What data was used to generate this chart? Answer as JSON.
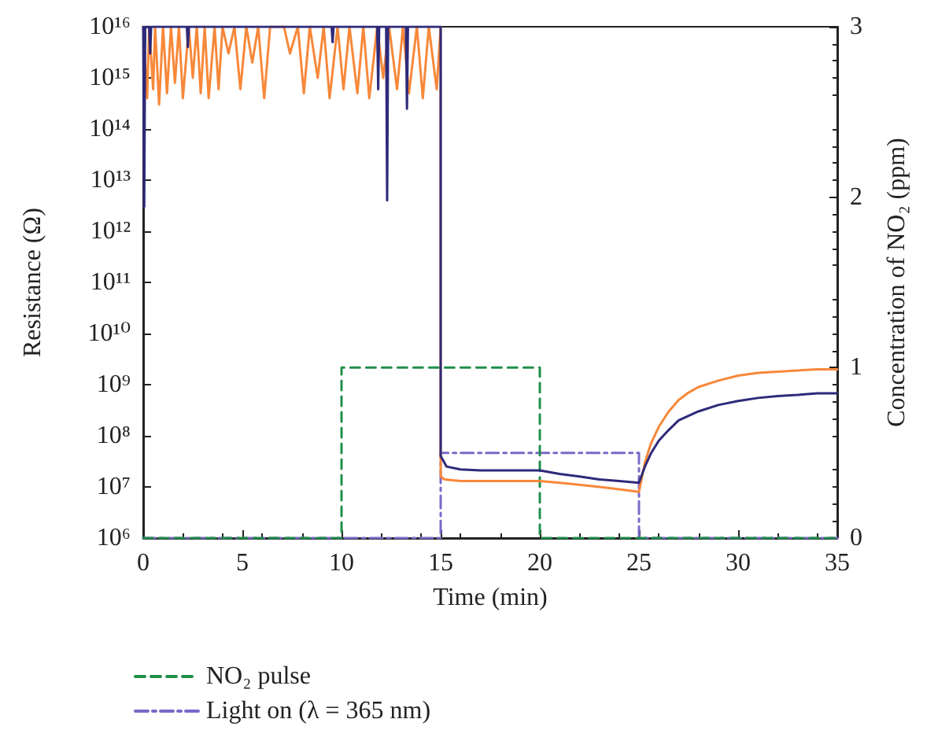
{
  "chart_data": {
    "type": "line",
    "xlabel": "Time (min)",
    "ylabel": "Resistance (Ω)",
    "y2label": "Concentration of NO₂ (ppm)",
    "xlim": [
      0,
      35
    ],
    "xticks": [
      0,
      5,
      10,
      15,
      20,
      25,
      30,
      35
    ],
    "ylim": [
      1000000.0,
      1e+16
    ],
    "yticks": [
      {
        "value": 1000000.0,
        "label": "10⁶"
      },
      {
        "value": 10000000.0,
        "label": "10⁷"
      },
      {
        "value": 100000000.0,
        "label": "10⁸"
      },
      {
        "value": 1000000000.0,
        "label": "10⁹"
      },
      {
        "value": 10000000000.0,
        "label": "10¹⁰"
      },
      {
        "value": 100000000000.0,
        "label": "10¹¹"
      },
      {
        "value": 1000000000000.0,
        "label": "10¹²"
      },
      {
        "value": 10000000000000.0,
        "label": "10¹³"
      },
      {
        "value": 100000000000000.0,
        "label": "10¹⁴"
      },
      {
        "value": 1000000000000000.0,
        "label": "10¹⁵"
      },
      {
        "value": 1e+16,
        "label": "10¹⁶"
      }
    ],
    "y2lim": [
      0,
      3
    ],
    "y2ticks": [
      0,
      1,
      2,
      3
    ],
    "log": "y",
    "grid": false,
    "legend": "bottom left",
    "marker": "none",
    "series": [
      {
        "color": "#2e2a7a",
        "line_style": "solid",
        "x": [
          0,
          0.05,
          0.1,
          0.3,
          0.35,
          0.4,
          2.2,
          2.25,
          2.3,
          9.5,
          9.55,
          9.6,
          11.8,
          11.85,
          11.9,
          12.25,
          12.3,
          12.35,
          13.25,
          13.3,
          13.35,
          14.9,
          15,
          15,
          15.3,
          16,
          17,
          18,
          19,
          20,
          21,
          22,
          23,
          24,
          25,
          25.3,
          25.6,
          26,
          26.5,
          27,
          28,
          29,
          30,
          31,
          32,
          33,
          34,
          35
        ],
        "values": [
          1e+16,
          3000000000000.0,
          1e+16,
          1e+16,
          3000000000000000.0,
          1e+16,
          1e+16,
          4000000000000000.0,
          1e+16,
          1e+16,
          5000000000000000.0,
          1e+16,
          1e+16,
          600000000000000.0,
          1e+16,
          1e+16,
          4000000000000.0,
          1e+16,
          1e+16,
          250000000000000.0,
          1e+16,
          1e+16,
          1e+16,
          40000000.0,
          25000000.0,
          22000000.0,
          21000000.0,
          21000000.0,
          21000000.0,
          21000000.0,
          18000000.0,
          16000000.0,
          14000000.0,
          13000000.0,
          12000000.0,
          25000000.0,
          45000000.0,
          80000000.0,
          130000000.0,
          200000000.0,
          300000000.0,
          400000000.0,
          480000000.0,
          550000000.0,
          600000000.0,
          630000000.0,
          680000000.0,
          680000000.0
        ]
      },
      {
        "color": "#f7883a",
        "line_style": "solid",
        "x": [
          0,
          0.2,
          0.3,
          0.5,
          0.6,
          0.8,
          1.0,
          1.2,
          1.4,
          1.6,
          1.8,
          2.0,
          2.3,
          2.5,
          2.7,
          2.9,
          3.1,
          3.3,
          3.6,
          3.8,
          4.0,
          4.3,
          4.6,
          4.9,
          5.2,
          5.5,
          5.8,
          6.1,
          6.4,
          6.8,
          7.1,
          7.4,
          7.8,
          8.1,
          8.4,
          8.8,
          9.1,
          9.4,
          9.8,
          10.1,
          10.4,
          10.8,
          11.1,
          11.4,
          11.8,
          12.1,
          12.4,
          12.8,
          13.1,
          13.4,
          13.8,
          14.1,
          14.4,
          14.8,
          15,
          15,
          15.2,
          16,
          17,
          18,
          19,
          20,
          21,
          22,
          23,
          24,
          25,
          25.3,
          25.6,
          26,
          26.5,
          27,
          27.5,
          28,
          29,
          30,
          31,
          32,
          33,
          34,
          35
        ],
        "values": [
          1e+16,
          400000000000000.0,
          1e+16,
          600000000000000.0,
          1e+16,
          300000000000000.0,
          1e+16,
          500000000000000.0,
          1e+16,
          800000000000000.0,
          1e+16,
          400000000000000.0,
          1e+16,
          1000000000000000.0,
          1e+16,
          500000000000000.0,
          1e+16,
          400000000000000.0,
          1e+16,
          600000000000000.0,
          1e+16,
          3000000000000000.0,
          1e+16,
          600000000000000.0,
          1e+16,
          2000000000000000.0,
          1e+16,
          400000000000000.0,
          1e+16,
          1e+16,
          1e+16,
          3000000000000000.0,
          1e+16,
          500000000000000.0,
          1e+16,
          1000000000000000.0,
          1e+16,
          400000000000000.0,
          1e+16,
          600000000000000.0,
          1e+16,
          500000000000000.0,
          1e+16,
          400000000000000.0,
          1e+16,
          1000000000000000.0,
          1e+16,
          600000000000000.0,
          1e+16,
          500000000000000.0,
          1e+16,
          400000000000000.0,
          1e+16,
          600000000000000.0,
          1e+16,
          16000000.0,
          14000000.0,
          13000000.0,
          13000000.0,
          13000000.0,
          13000000.0,
          13000000.0,
          12000000.0,
          11000000.0,
          10000000.0,
          9000000.0,
          8000000.0,
          30000000.0,
          70000000.0,
          150000000.0,
          300000000.0,
          500000000.0,
          700000000.0,
          900000000.0,
          1200000000.0,
          1500000000.0,
          1700000000.0,
          1800000000.0,
          1900000000.0,
          2000000000.0,
          2000000000.0
        ]
      },
      {
        "name": "NO₂ pulse",
        "color": "#1f8f4a",
        "line_style": "dashed",
        "axis": "y2",
        "x": [
          0,
          10,
          10,
          20,
          20,
          35
        ],
        "values": [
          0,
          0,
          1,
          1,
          0,
          0
        ]
      },
      {
        "name": "Light on (λ = 365 nm)",
        "color": "#7b68c8",
        "line_style": "dashdot",
        "axis": "y2",
        "x": [
          0,
          15,
          15,
          25,
          25,
          35
        ],
        "values": [
          0,
          0,
          0.5,
          0.5,
          0,
          0
        ]
      }
    ]
  }
}
